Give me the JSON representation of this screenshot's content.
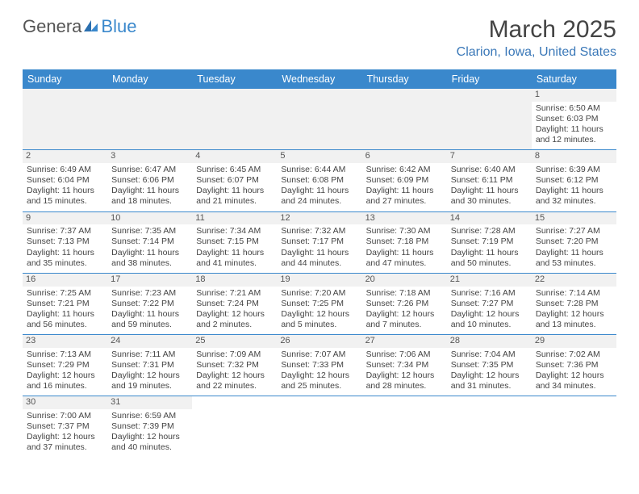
{
  "logo": {
    "part1": "Genera",
    "part2": "Blue"
  },
  "header": {
    "month_title": "March 2025",
    "location": "Clarion, Iowa, United States"
  },
  "weekdays": [
    "Sunday",
    "Monday",
    "Tuesday",
    "Wednesday",
    "Thursday",
    "Friday",
    "Saturday"
  ],
  "colors": {
    "header_bg": "#3a88cc",
    "header_text": "#ffffff",
    "row_divider": "#3a88cc",
    "daynum_bg": "#f1f1f1",
    "location_text": "#3a78b8"
  },
  "weeks": [
    [
      null,
      null,
      null,
      null,
      null,
      null,
      {
        "n": "1",
        "sunrise": "Sunrise: 6:50 AM",
        "sunset": "Sunset: 6:03 PM",
        "daylight1": "Daylight: 11 hours",
        "daylight2": "and 12 minutes."
      }
    ],
    [
      {
        "n": "2",
        "sunrise": "Sunrise: 6:49 AM",
        "sunset": "Sunset: 6:04 PM",
        "daylight1": "Daylight: 11 hours",
        "daylight2": "and 15 minutes."
      },
      {
        "n": "3",
        "sunrise": "Sunrise: 6:47 AM",
        "sunset": "Sunset: 6:06 PM",
        "daylight1": "Daylight: 11 hours",
        "daylight2": "and 18 minutes."
      },
      {
        "n": "4",
        "sunrise": "Sunrise: 6:45 AM",
        "sunset": "Sunset: 6:07 PM",
        "daylight1": "Daylight: 11 hours",
        "daylight2": "and 21 minutes."
      },
      {
        "n": "5",
        "sunrise": "Sunrise: 6:44 AM",
        "sunset": "Sunset: 6:08 PM",
        "daylight1": "Daylight: 11 hours",
        "daylight2": "and 24 minutes."
      },
      {
        "n": "6",
        "sunrise": "Sunrise: 6:42 AM",
        "sunset": "Sunset: 6:09 PM",
        "daylight1": "Daylight: 11 hours",
        "daylight2": "and 27 minutes."
      },
      {
        "n": "7",
        "sunrise": "Sunrise: 6:40 AM",
        "sunset": "Sunset: 6:11 PM",
        "daylight1": "Daylight: 11 hours",
        "daylight2": "and 30 minutes."
      },
      {
        "n": "8",
        "sunrise": "Sunrise: 6:39 AM",
        "sunset": "Sunset: 6:12 PM",
        "daylight1": "Daylight: 11 hours",
        "daylight2": "and 32 minutes."
      }
    ],
    [
      {
        "n": "9",
        "sunrise": "Sunrise: 7:37 AM",
        "sunset": "Sunset: 7:13 PM",
        "daylight1": "Daylight: 11 hours",
        "daylight2": "and 35 minutes."
      },
      {
        "n": "10",
        "sunrise": "Sunrise: 7:35 AM",
        "sunset": "Sunset: 7:14 PM",
        "daylight1": "Daylight: 11 hours",
        "daylight2": "and 38 minutes."
      },
      {
        "n": "11",
        "sunrise": "Sunrise: 7:34 AM",
        "sunset": "Sunset: 7:15 PM",
        "daylight1": "Daylight: 11 hours",
        "daylight2": "and 41 minutes."
      },
      {
        "n": "12",
        "sunrise": "Sunrise: 7:32 AM",
        "sunset": "Sunset: 7:17 PM",
        "daylight1": "Daylight: 11 hours",
        "daylight2": "and 44 minutes."
      },
      {
        "n": "13",
        "sunrise": "Sunrise: 7:30 AM",
        "sunset": "Sunset: 7:18 PM",
        "daylight1": "Daylight: 11 hours",
        "daylight2": "and 47 minutes."
      },
      {
        "n": "14",
        "sunrise": "Sunrise: 7:28 AM",
        "sunset": "Sunset: 7:19 PM",
        "daylight1": "Daylight: 11 hours",
        "daylight2": "and 50 minutes."
      },
      {
        "n": "15",
        "sunrise": "Sunrise: 7:27 AM",
        "sunset": "Sunset: 7:20 PM",
        "daylight1": "Daylight: 11 hours",
        "daylight2": "and 53 minutes."
      }
    ],
    [
      {
        "n": "16",
        "sunrise": "Sunrise: 7:25 AM",
        "sunset": "Sunset: 7:21 PM",
        "daylight1": "Daylight: 11 hours",
        "daylight2": "and 56 minutes."
      },
      {
        "n": "17",
        "sunrise": "Sunrise: 7:23 AM",
        "sunset": "Sunset: 7:22 PM",
        "daylight1": "Daylight: 11 hours",
        "daylight2": "and 59 minutes."
      },
      {
        "n": "18",
        "sunrise": "Sunrise: 7:21 AM",
        "sunset": "Sunset: 7:24 PM",
        "daylight1": "Daylight: 12 hours",
        "daylight2": "and 2 minutes."
      },
      {
        "n": "19",
        "sunrise": "Sunrise: 7:20 AM",
        "sunset": "Sunset: 7:25 PM",
        "daylight1": "Daylight: 12 hours",
        "daylight2": "and 5 minutes."
      },
      {
        "n": "20",
        "sunrise": "Sunrise: 7:18 AM",
        "sunset": "Sunset: 7:26 PM",
        "daylight1": "Daylight: 12 hours",
        "daylight2": "and 7 minutes."
      },
      {
        "n": "21",
        "sunrise": "Sunrise: 7:16 AM",
        "sunset": "Sunset: 7:27 PM",
        "daylight1": "Daylight: 12 hours",
        "daylight2": "and 10 minutes."
      },
      {
        "n": "22",
        "sunrise": "Sunrise: 7:14 AM",
        "sunset": "Sunset: 7:28 PM",
        "daylight1": "Daylight: 12 hours",
        "daylight2": "and 13 minutes."
      }
    ],
    [
      {
        "n": "23",
        "sunrise": "Sunrise: 7:13 AM",
        "sunset": "Sunset: 7:29 PM",
        "daylight1": "Daylight: 12 hours",
        "daylight2": "and 16 minutes."
      },
      {
        "n": "24",
        "sunrise": "Sunrise: 7:11 AM",
        "sunset": "Sunset: 7:31 PM",
        "daylight1": "Daylight: 12 hours",
        "daylight2": "and 19 minutes."
      },
      {
        "n": "25",
        "sunrise": "Sunrise: 7:09 AM",
        "sunset": "Sunset: 7:32 PM",
        "daylight1": "Daylight: 12 hours",
        "daylight2": "and 22 minutes."
      },
      {
        "n": "26",
        "sunrise": "Sunrise: 7:07 AM",
        "sunset": "Sunset: 7:33 PM",
        "daylight1": "Daylight: 12 hours",
        "daylight2": "and 25 minutes."
      },
      {
        "n": "27",
        "sunrise": "Sunrise: 7:06 AM",
        "sunset": "Sunset: 7:34 PM",
        "daylight1": "Daylight: 12 hours",
        "daylight2": "and 28 minutes."
      },
      {
        "n": "28",
        "sunrise": "Sunrise: 7:04 AM",
        "sunset": "Sunset: 7:35 PM",
        "daylight1": "Daylight: 12 hours",
        "daylight2": "and 31 minutes."
      },
      {
        "n": "29",
        "sunrise": "Sunrise: 7:02 AM",
        "sunset": "Sunset: 7:36 PM",
        "daylight1": "Daylight: 12 hours",
        "daylight2": "and 34 minutes."
      }
    ],
    [
      {
        "n": "30",
        "sunrise": "Sunrise: 7:00 AM",
        "sunset": "Sunset: 7:37 PM",
        "daylight1": "Daylight: 12 hours",
        "daylight2": "and 37 minutes."
      },
      {
        "n": "31",
        "sunrise": "Sunrise: 6:59 AM",
        "sunset": "Sunset: 7:39 PM",
        "daylight1": "Daylight: 12 hours",
        "daylight2": "and 40 minutes."
      },
      null,
      null,
      null,
      null,
      null
    ]
  ]
}
